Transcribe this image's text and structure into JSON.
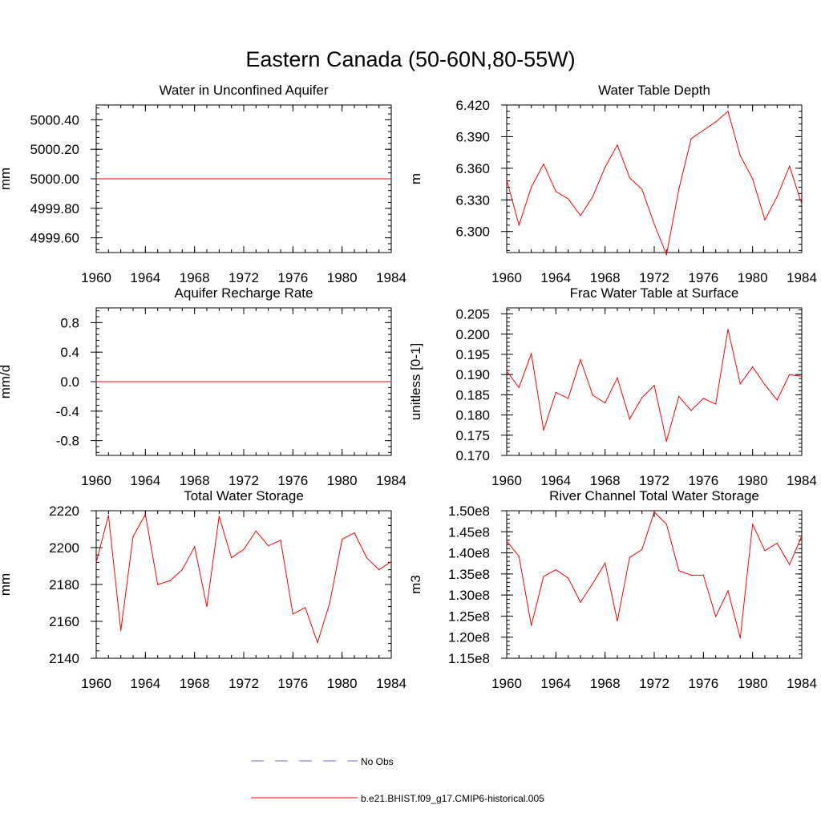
{
  "figure": {
    "title": "Eastern Canada (50-60N,80-55W)"
  },
  "legend": {
    "entries": [
      {
        "label": "No Obs",
        "style": "dashed",
        "color": "#6a6ab8"
      },
      {
        "label": "b.e21.BHIST.f09_g17.CMIP6-historical.005",
        "style": "solid",
        "color": "#ff0000"
      }
    ]
  },
  "chart_data": [
    {
      "id": "unconfined-aquifer",
      "type": "line",
      "title": "Water in Unconfined Aquifer",
      "ylabel": "mm",
      "xlim": [
        1960,
        1984
      ],
      "ylim": [
        4999.5,
        5000.5
      ],
      "xticks": [
        1960,
        1964,
        1968,
        1972,
        1976,
        1980,
        1984
      ],
      "yticks": [
        4999.6,
        4999.8,
        5000.0,
        5000.2,
        5000.4
      ],
      "ytick_labels": [
        "4999.60",
        "4999.80",
        "5000.00",
        "5000.20",
        "5000.40"
      ],
      "yminor": 0.04,
      "series": [
        {
          "name": "b.e21.BHIST.f09_g17.CMIP6-historical.005",
          "color": "#ff0000",
          "x": [
            1960,
            1984
          ],
          "values": [
            5000.0,
            5000.0
          ]
        }
      ]
    },
    {
      "id": "water-table-depth",
      "type": "line",
      "title": "Water Table Depth",
      "ylabel": "m",
      "xlim": [
        1960,
        1984
      ],
      "ylim": [
        6.28,
        6.42
      ],
      "xticks": [
        1960,
        1964,
        1968,
        1972,
        1976,
        1980,
        1984
      ],
      "yticks": [
        6.3,
        6.33,
        6.36,
        6.39,
        6.42
      ],
      "ytick_labels": [
        "6.300",
        "6.330",
        "6.360",
        "6.390",
        "6.420"
      ],
      "yminor": 0.006,
      "series": [
        {
          "name": "b.e21.BHIST.f09_g17.CMIP6-historical.005",
          "color": "#ff0000",
          "x": [
            1960,
            1961,
            1962,
            1963,
            1964,
            1965,
            1966,
            1967,
            1968,
            1969,
            1970,
            1971,
            1972,
            1973,
            1974,
            1975,
            1976,
            1977,
            1978,
            1979,
            1980,
            1981,
            1982,
            1983,
            1984
          ],
          "values": [
            6.349,
            6.306,
            6.342,
            6.364,
            6.338,
            6.331,
            6.315,
            6.333,
            6.361,
            6.382,
            6.351,
            6.34,
            6.307,
            6.278,
            6.34,
            6.388,
            6.396,
            6.404,
            6.414,
            6.372,
            6.35,
            6.311,
            6.333,
            6.362,
            6.326
          ]
        }
      ]
    },
    {
      "id": "recharge-rate",
      "type": "line",
      "title": "Aquifer Recharge Rate",
      "ylabel": "mm/d",
      "xlim": [
        1960,
        1984
      ],
      "ylim": [
        -1.0,
        1.0
      ],
      "xticks": [
        1960,
        1964,
        1968,
        1972,
        1976,
        1980,
        1984
      ],
      "yticks": [
        -0.8,
        -0.4,
        0.0,
        0.4,
        0.8
      ],
      "ytick_labels": [
        "-0.8",
        "-0.4",
        "0.0",
        "0.4",
        "0.8"
      ],
      "yminor": 0.08,
      "series": [
        {
          "name": "b.e21.BHIST.f09_g17.CMIP6-historical.005",
          "color": "#ff0000",
          "x": [
            1960,
            1984
          ],
          "values": [
            0.0,
            0.0
          ]
        }
      ]
    },
    {
      "id": "frac-water-table",
      "type": "line",
      "title": "Frac Water Table at Surface",
      "ylabel": "unitless [0-1]",
      "xlim": [
        1960,
        1984
      ],
      "ylim": [
        0.17,
        0.2065
      ],
      "xticks": [
        1960,
        1964,
        1968,
        1972,
        1976,
        1980,
        1984
      ],
      "yticks": [
        0.17,
        0.175,
        0.18,
        0.185,
        0.19,
        0.195,
        0.2,
        0.205
      ],
      "ytick_labels": [
        "0.170",
        "0.175",
        "0.180",
        "0.185",
        "0.190",
        "0.195",
        "0.200",
        "0.205"
      ],
      "yminor": 0.001,
      "series": [
        {
          "name": "b.e21.BHIST.f09_g17.CMIP6-historical.005",
          "color": "#ff0000",
          "x": [
            1960,
            1961,
            1962,
            1963,
            1964,
            1965,
            1966,
            1967,
            1968,
            1969,
            1970,
            1971,
            1972,
            1973,
            1974,
            1975,
            1976,
            1977,
            1978,
            1979,
            1980,
            1981,
            1982,
            1983,
            1984
          ],
          "values": [
            0.1908,
            0.1868,
            0.1952,
            0.1762,
            0.1856,
            0.1841,
            0.1937,
            0.1849,
            0.183,
            0.1892,
            0.179,
            0.1843,
            0.1873,
            0.1735,
            0.1846,
            0.1811,
            0.1841,
            0.1827,
            0.2012,
            0.1877,
            0.1919,
            0.1875,
            0.1837,
            0.19,
            0.1896
          ]
        }
      ]
    },
    {
      "id": "total-water-storage",
      "type": "line",
      "title": "Total Water Storage",
      "ylabel": "mm",
      "xlim": [
        1960,
        1984
      ],
      "ylim": [
        2140,
        2220
      ],
      "xticks": [
        1960,
        1964,
        1968,
        1972,
        1976,
        1980,
        1984
      ],
      "yticks": [
        2140,
        2160,
        2180,
        2200,
        2220
      ],
      "ytick_labels": [
        "2140",
        "2160",
        "2180",
        "2200",
        "2220"
      ],
      "yminor": 4,
      "series": [
        {
          "name": "b.e21.BHIST.f09_g17.CMIP6-historical.005",
          "color": "#ff0000",
          "x": [
            1960,
            1961,
            1962,
            1963,
            1964,
            1965,
            1966,
            1967,
            1968,
            1969,
            1970,
            1971,
            1972,
            1973,
            1974,
            1975,
            1976,
            1977,
            1978,
            1979,
            1980,
            1981,
            1982,
            1983,
            1984
          ],
          "values": [
            2192,
            2217.5,
            2155,
            2206,
            2218,
            2180,
            2182,
            2188,
            2200.5,
            2168,
            2217,
            2194.5,
            2199,
            2209,
            2201,
            2204,
            2164,
            2167.5,
            2148.5,
            2170,
            2204.5,
            2208,
            2194.5,
            2188,
            2192.5
          ]
        }
      ]
    },
    {
      "id": "river-channel-storage",
      "type": "line",
      "title": "River Channel Total Water Storage",
      "ylabel": "m3",
      "xlim": [
        1960,
        1984
      ],
      "ylim": [
        115000000.0,
        150000000.0
      ],
      "xticks": [
        1960,
        1964,
        1968,
        1972,
        1976,
        1980,
        1984
      ],
      "yticks": [
        115000000.0,
        120000000.0,
        125000000.0,
        130000000.0,
        135000000.0,
        140000000.0,
        145000000.0,
        150000000.0
      ],
      "ytick_labels": [
        "1.15e8",
        "1.20e8",
        "1.25e8",
        "1.30e8",
        "1.35e8",
        "1.40e8",
        "1.45e8",
        "1.50e8"
      ],
      "yminor": 1000000.0,
      "series": [
        {
          "name": "b.e21.BHIST.f09_g17.CMIP6-historical.005",
          "color": "#ff0000",
          "x": [
            1960,
            1961,
            1962,
            1963,
            1964,
            1965,
            1966,
            1967,
            1968,
            1969,
            1970,
            1971,
            1972,
            1973,
            1974,
            1975,
            1976,
            1977,
            1978,
            1979,
            1980,
            1981,
            1982,
            1983,
            1984
          ],
          "values": [
            142800000.0,
            139200000.0,
            122800000.0,
            134400000.0,
            136000000.0,
            134000000.0,
            128300000.0,
            132700000.0,
            137600000.0,
            123800000.0,
            138900000.0,
            140800000.0,
            149700000.0,
            146800000.0,
            135800000.0,
            134700000.0,
            134700000.0,
            124900000.0,
            131000000.0,
            119800000.0,
            146800000.0,
            140500000.0,
            142300000.0,
            137200000.0,
            144000000.0
          ]
        }
      ]
    }
  ]
}
